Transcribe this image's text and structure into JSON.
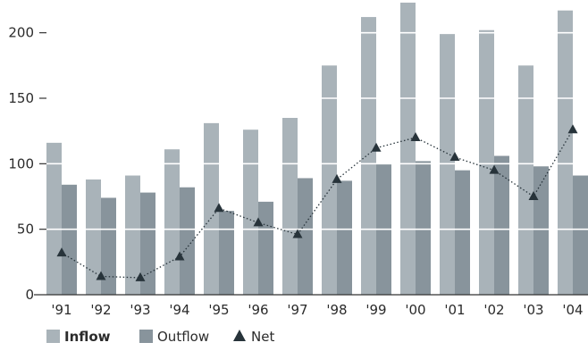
{
  "chart_data": {
    "type": "bar",
    "categories": [
      "'91",
      "'92",
      "'93",
      "'94",
      "'95",
      "'96",
      "'97",
      "'98",
      "'99",
      "'00",
      "'01",
      "'02",
      "'03",
      "'04"
    ],
    "series": [
      {
        "name": "Inflow",
        "type": "bar",
        "color": "#a9b3b9",
        "values": [
          116,
          88,
          91,
          111,
          131,
          126,
          135,
          175,
          212,
          223,
          199,
          202,
          175,
          217
        ]
      },
      {
        "name": "Outflow",
        "type": "bar",
        "color": "#88949c",
        "values": [
          84,
          74,
          78,
          82,
          64,
          71,
          89,
          87,
          100,
          102,
          95,
          106,
          98,
          91
        ]
      },
      {
        "name": "Net",
        "type": "line",
        "color": "#27333a",
        "line_style": "dotted",
        "marker": "triangle",
        "values": [
          32,
          14,
          13,
          29,
          66,
          55,
          46,
          88,
          112,
          120,
          105,
          95,
          75,
          126
        ]
      }
    ],
    "yticks": [
      0,
      50,
      100,
      150,
      200
    ],
    "ylim": [
      0,
      225
    ],
    "grid": true,
    "legend_position": "bottom-left",
    "title": "",
    "xlabel": "",
    "ylabel": ""
  }
}
